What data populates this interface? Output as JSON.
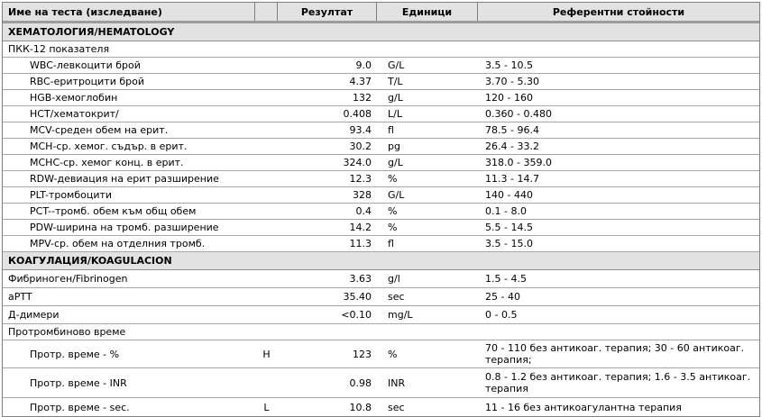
{
  "colors": {
    "header_background": "#e2e2e2",
    "section_background": "#e2e2e2",
    "table_border": "#7f7f7f",
    "row_separator": "#a8a8a8"
  },
  "table": {
    "header": {
      "name_label": "Име на теста (изследване)",
      "flag_label": "",
      "result_label": "Резултат",
      "units_label": "Единици",
      "reference_label": "Референтни стойности"
    },
    "hematology": {
      "title": "ХЕМАТОЛОГИЯ/HEMATOLOGY",
      "group_label": "ПКК-12 показателя",
      "rows": [
        {
          "name": "WBC-левкоцити брой",
          "flag": "",
          "result": "9.0",
          "units": "G/L",
          "reference": "3.5 - 10.5"
        },
        {
          "name": "RBC-еритроцити брой",
          "flag": "",
          "result": "4.37",
          "units": "T/L",
          "reference": "3.70 - 5.30"
        },
        {
          "name": "HGB-хемоглобин",
          "flag": "",
          "result": "132",
          "units": "g/L",
          "reference": "120 - 160"
        },
        {
          "name": "HCT/хематокрит/",
          "flag": "",
          "result": "0.408",
          "units": "L/L",
          "reference": "0.360 - 0.480"
        },
        {
          "name": "MCV-среден обем на ерит.",
          "flag": "",
          "result": "93.4",
          "units": "fl",
          "reference": "78.5 - 96.4"
        },
        {
          "name": "MCH-ср. хемог. съдър. в ерит.",
          "flag": "",
          "result": "30.2",
          "units": "pg",
          "reference": "26.4 - 33.2"
        },
        {
          "name": "MCHC-ср. хемог конц. в ерит.",
          "flag": "",
          "result": "324.0",
          "units": "g/L",
          "reference": "318.0 - 359.0"
        },
        {
          "name": "RDW-девиация на ерит разширение",
          "flag": "",
          "result": "12.3",
          "units": "%",
          "reference": "11.3 - 14.7"
        },
        {
          "name": "PLT-тромбоцити",
          "flag": "",
          "result": "328",
          "units": "G/L",
          "reference": "140 - 440"
        },
        {
          "name": "PCT--тромб. обем към общ обем",
          "flag": "",
          "result": "0.4",
          "units": "%",
          "reference": "0.1 - 8.0"
        },
        {
          "name": "PDW-ширина на тромб. разширение",
          "flag": "",
          "result": "14.2",
          "units": "%",
          "reference": "5.5 - 14.5"
        },
        {
          "name": "MPV-ср. обем на отделния тромб.",
          "flag": "",
          "result": "11.3",
          "units": "fl",
          "reference": "3.5 - 15.0"
        }
      ]
    },
    "coagulation": {
      "title": "КОАГУЛАЦИЯ/KOAGULACION",
      "rows": [
        {
          "name": "Фибриноген/Fibrinogen",
          "flag": "",
          "result": "3.63",
          "units": "g/l",
          "reference": "1.5 - 4.5"
        },
        {
          "name": "aPTT",
          "flag": "",
          "result": "35.40",
          "units": "sec",
          "reference": "25 - 40"
        },
        {
          "name": "Д-димери",
          "flag": "",
          "result": "<0.10",
          "units": "mg/L",
          "reference": "0 - 0.5"
        }
      ],
      "prothrombin_group_label": "Протромбиново време",
      "prothrombin_rows": [
        {
          "name": "Протр. време - %",
          "flag": "H",
          "result": "123",
          "units": "%",
          "reference": "70 - 110 без антикоаг. терапия; 30 - 60 антикоаг. терапия;"
        },
        {
          "name": "Протр. време - INR",
          "flag": "",
          "result": "0.98",
          "units": "INR",
          "reference": "0.8 - 1.2 без антикоаг. терапия; 1.6 - 3.5 антикоаг. терапия"
        },
        {
          "name": "Протр. време - sec.",
          "flag": "L",
          "result": "10.8",
          "units": "sec",
          "reference": "11 - 16 без антикоагулантна терапия"
        }
      ]
    }
  }
}
